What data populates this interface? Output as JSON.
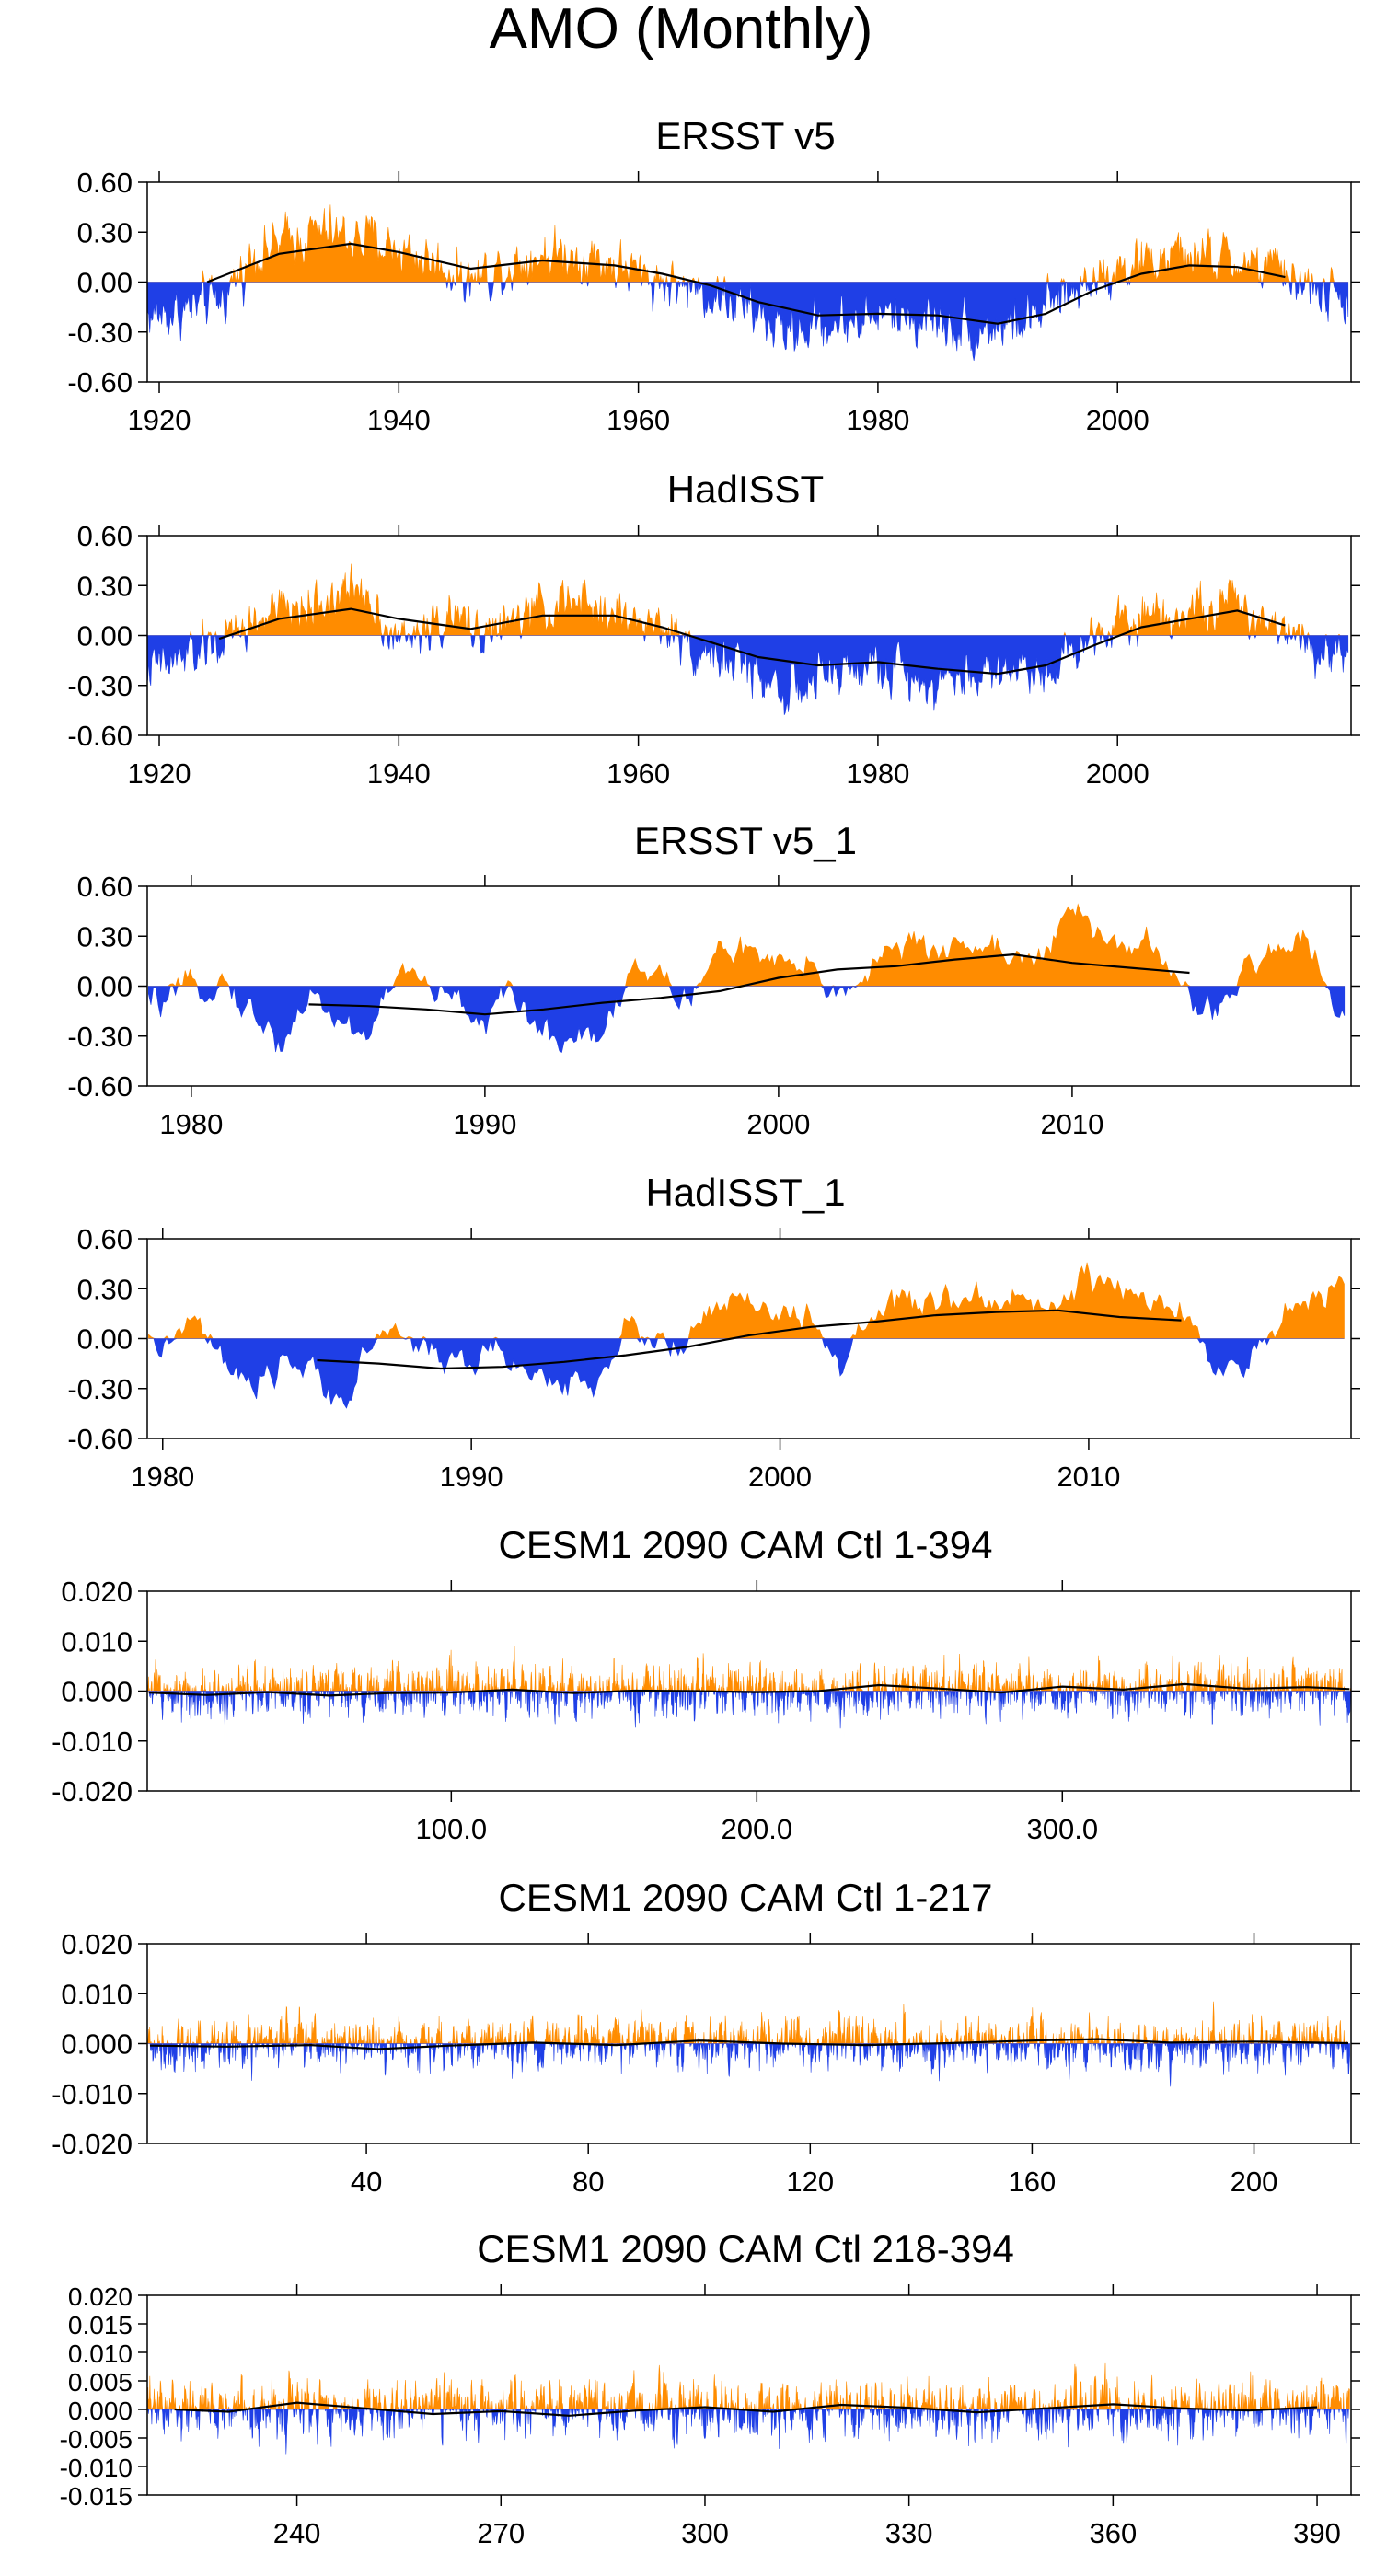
{
  "figure": {
    "title": "AMO (Monthly)"
  },
  "colors": {
    "positive": "#ff8c00",
    "negative": "#1f3fe6",
    "smooth": "#000000"
  },
  "chart_data": [
    {
      "type": "area",
      "title": "ERSST v5",
      "xlim": [
        1919,
        2019.5
      ],
      "ylim": [
        -0.6,
        0.6
      ],
      "yticks": [
        "0.60",
        "0.30",
        "0.00",
        "-0.30",
        "-0.60"
      ],
      "ytick_values": [
        0.6,
        0.3,
        0.0,
        -0.3,
        -0.6
      ],
      "xticks": [
        "1920",
        "1940",
        "1960",
        "1980",
        "2000"
      ],
      "xtick_values": [
        1920,
        1940,
        1960,
        1980,
        2000
      ],
      "anomaly_anchors": [
        [
          1920,
          -0.2
        ],
        [
          1925,
          -0.12
        ],
        [
          1928,
          0.18
        ],
        [
          1933,
          0.3
        ],
        [
          1938,
          0.25
        ],
        [
          1942,
          0.15
        ],
        [
          1946,
          0.02
        ],
        [
          1952,
          0.18
        ],
        [
          1956,
          0.15
        ],
        [
          1960,
          0.05
        ],
        [
          1965,
          -0.05
        ],
        [
          1968,
          -0.12
        ],
        [
          1972,
          -0.3
        ],
        [
          1976,
          -0.25
        ],
        [
          1980,
          -0.2
        ],
        [
          1984,
          -0.22
        ],
        [
          1988,
          -0.28
        ],
        [
          1992,
          -0.25
        ],
        [
          1996,
          -0.08
        ],
        [
          1998,
          0.05
        ],
        [
          2002,
          0.12
        ],
        [
          2006,
          0.15
        ],
        [
          2010,
          0.12
        ],
        [
          2014,
          0.05
        ],
        [
          2018,
          -0.1
        ]
      ],
      "smooth": {
        "x": [
          1924,
          1930,
          1936,
          1940,
          1946,
          1952,
          1958,
          1962,
          1966,
          1970,
          1975,
          1980,
          1985,
          1990,
          1994,
          1998,
          2002,
          2006,
          2010,
          2014
        ],
        "y": [
          0.0,
          0.17,
          0.23,
          0.18,
          0.08,
          0.13,
          0.1,
          0.05,
          -0.02,
          -0.12,
          -0.2,
          -0.19,
          -0.2,
          -0.25,
          -0.19,
          -0.05,
          0.05,
          0.1,
          0.09,
          0.03
        ]
      },
      "noise": 0.13,
      "step": 0.0833
    },
    {
      "type": "area",
      "title": "HadISST",
      "xlim": [
        1919,
        2019.5
      ],
      "ylim": [
        -0.6,
        0.6
      ],
      "yticks": [
        "0.60",
        "0.30",
        "0.00",
        "-0.30",
        "-0.60"
      ],
      "ytick_values": [
        0.6,
        0.3,
        0.0,
        -0.3,
        -0.6
      ],
      "xticks": [
        "1920",
        "1940",
        "1960",
        "1980",
        "2000"
      ],
      "xtick_values": [
        1920,
        1940,
        1960,
        1980,
        2000
      ],
      "anomaly_anchors": [
        [
          1920,
          -0.2
        ],
        [
          1925,
          -0.05
        ],
        [
          1929,
          0.12
        ],
        [
          1934,
          0.2
        ],
        [
          1937,
          0.3
        ],
        [
          1940,
          -0.05
        ],
        [
          1944,
          0.1
        ],
        [
          1948,
          0.02
        ],
        [
          1953,
          0.2
        ],
        [
          1957,
          0.15
        ],
        [
          1962,
          0.05
        ],
        [
          1965,
          -0.08
        ],
        [
          1969,
          -0.2
        ],
        [
          1973,
          -0.35
        ],
        [
          1977,
          -0.2
        ],
        [
          1981,
          -0.2
        ],
        [
          1985,
          -0.28
        ],
        [
          1990,
          -0.2
        ],
        [
          1994,
          -0.2
        ],
        [
          1997,
          -0.05
        ],
        [
          2000,
          0.12
        ],
        [
          2005,
          0.15
        ],
        [
          2010,
          0.18
        ],
        [
          2014,
          0.05
        ],
        [
          2018,
          -0.1
        ]
      ],
      "smooth": {
        "x": [
          1925,
          1930,
          1936,
          1940,
          1946,
          1952,
          1958,
          1962,
          1966,
          1970,
          1975,
          1980,
          1985,
          1990,
          1994,
          1998,
          2002,
          2006,
          2010,
          2014
        ],
        "y": [
          -0.02,
          0.1,
          0.16,
          0.1,
          0.04,
          0.12,
          0.12,
          0.05,
          -0.04,
          -0.13,
          -0.18,
          -0.16,
          -0.2,
          -0.23,
          -0.18,
          -0.06,
          0.05,
          0.1,
          0.15,
          0.06
        ]
      },
      "noise": 0.12,
      "step": 0.0833
    },
    {
      "type": "area",
      "title": "ERSST v5_1",
      "xlim": [
        1978.5,
        2019.5
      ],
      "ylim": [
        -0.6,
        0.6
      ],
      "yticks": [
        "0.60",
        "0.30",
        "0.00",
        "-0.30",
        "-0.60"
      ],
      "ytick_values": [
        0.6,
        0.3,
        0.0,
        -0.3,
        -0.6
      ],
      "xticks": [
        "1980",
        "1990",
        "2000",
        "2010"
      ],
      "xtick_values": [
        1980,
        1990,
        2000,
        2010
      ],
      "anomaly_anchors": [
        [
          1979,
          -0.1
        ],
        [
          1981,
          0.05
        ],
        [
          1982,
          -0.15
        ],
        [
          1983,
          -0.35
        ],
        [
          1984,
          -0.05
        ],
        [
          1985,
          -0.2
        ],
        [
          1986,
          -0.3
        ],
        [
          1987,
          0.1
        ],
        [
          1988,
          0.0
        ],
        [
          1989,
          -0.1
        ],
        [
          1990,
          -0.2
        ],
        [
          1991,
          -0.05
        ],
        [
          1992,
          -0.3
        ],
        [
          1993,
          -0.3
        ],
        [
          1994,
          -0.25
        ],
        [
          1995,
          0.1
        ],
        [
          1996,
          0.05
        ],
        [
          1997,
          -0.1
        ],
        [
          1998,
          0.25
        ],
        [
          1999,
          0.2
        ],
        [
          2000,
          0.1
        ],
        [
          2001,
          0.1
        ],
        [
          2002,
          -0.05
        ],
        [
          2003,
          0.1
        ],
        [
          2004,
          0.25
        ],
        [
          2005,
          0.2
        ],
        [
          2006,
          0.25
        ],
        [
          2007,
          0.25
        ],
        [
          2008,
          0.2
        ],
        [
          2009,
          0.15
        ],
        [
          2010,
          0.45
        ],
        [
          2011,
          0.3
        ],
        [
          2012,
          0.25
        ],
        [
          2013,
          0.2
        ],
        [
          2014,
          -0.1
        ],
        [
          2015,
          -0.15
        ],
        [
          2016,
          0.1
        ],
        [
          2017,
          0.2
        ],
        [
          2018,
          0.35
        ],
        [
          2019,
          -0.15
        ]
      ],
      "smooth": {
        "x": [
          1984,
          1986,
          1988,
          1990,
          1992,
          1994,
          1996,
          1998,
          2000,
          2002,
          2004,
          2006,
          2008,
          2010,
          2012,
          2014
        ],
        "y": [
          -0.11,
          -0.12,
          -0.14,
          -0.17,
          -0.14,
          -0.1,
          -0.07,
          -0.03,
          0.05,
          0.1,
          0.12,
          0.16,
          0.19,
          0.14,
          0.11,
          0.08
        ]
      },
      "noise": 0.08,
      "step": 0.0833
    },
    {
      "type": "area",
      "title": "HadISST_1",
      "xlim": [
        1979.5,
        2018.5
      ],
      "ylim": [
        -0.6,
        0.6
      ],
      "yticks": [
        "0.60",
        "0.30",
        "0.00",
        "-0.30",
        "-0.60"
      ],
      "ytick_values": [
        0.6,
        0.3,
        0.0,
        -0.3,
        -0.6
      ],
      "xticks": [
        "1980",
        "1990",
        "2000",
        "2010"
      ],
      "xtick_values": [
        1980,
        1990,
        2000,
        2010
      ],
      "anomaly_anchors": [
        [
          1980,
          -0.05
        ],
        [
          1981,
          0.1
        ],
        [
          1982,
          -0.15
        ],
        [
          1983,
          -0.35
        ],
        [
          1984,
          -0.1
        ],
        [
          1985,
          -0.25
        ],
        [
          1986,
          -0.35
        ],
        [
          1987,
          0.05
        ],
        [
          1988,
          0.0
        ],
        [
          1989,
          -0.1
        ],
        [
          1990,
          -0.15
        ],
        [
          1991,
          -0.05
        ],
        [
          1992,
          -0.25
        ],
        [
          1993,
          -0.25
        ],
        [
          1994,
          -0.25
        ],
        [
          1995,
          0.05
        ],
        [
          1996,
          0.0
        ],
        [
          1997,
          -0.05
        ],
        [
          1998,
          0.2
        ],
        [
          1999,
          0.2
        ],
        [
          2000,
          0.15
        ],
        [
          2001,
          0.1
        ],
        [
          2002,
          -0.15
        ],
        [
          2003,
          0.1
        ],
        [
          2004,
          0.25
        ],
        [
          2005,
          0.15
        ],
        [
          2006,
          0.25
        ],
        [
          2007,
          0.2
        ],
        [
          2008,
          0.3
        ],
        [
          2009,
          0.15
        ],
        [
          2010,
          0.4
        ],
        [
          2011,
          0.25
        ],
        [
          2012,
          0.2
        ],
        [
          2013,
          0.15
        ],
        [
          2014,
          -0.1
        ],
        [
          2015,
          -0.15
        ],
        [
          2016,
          0.05
        ],
        [
          2017,
          0.2
        ],
        [
          2018,
          0.35
        ]
      ],
      "smooth": {
        "x": [
          1985,
          1987,
          1989,
          1991,
          1993,
          1995,
          1997,
          1999,
          2001,
          2003,
          2005,
          2007,
          2009,
          2011,
          2013
        ],
        "y": [
          -0.13,
          -0.15,
          -0.18,
          -0.17,
          -0.14,
          -0.1,
          -0.05,
          0.02,
          0.07,
          0.1,
          0.14,
          0.16,
          0.17,
          0.13,
          0.11
        ]
      },
      "noise": 0.08,
      "step": 0.0833
    },
    {
      "type": "area",
      "title": "CESM1 2090 CAM Ctl 1-394",
      "xlim": [
        0.5,
        394.5
      ],
      "ylim": [
        -0.02,
        0.02
      ],
      "yticks": [
        "0.020",
        "0.010",
        "0.000",
        "-0.010",
        "-0.020"
      ],
      "ytick_values": [
        0.02,
        0.01,
        0.0,
        -0.01,
        -0.02
      ],
      "xticks": [
        "100.0",
        "200.0",
        "300.0"
      ],
      "xtick_values": [
        100,
        200,
        300
      ],
      "anomaly_anchors": [
        [
          1,
          0.0
        ],
        [
          394,
          0.0
        ]
      ],
      "smooth": {
        "x": [
          1,
          20,
          40,
          60,
          80,
          100,
          120,
          140,
          160,
          180,
          200,
          220,
          240,
          260,
          280,
          300,
          320,
          340,
          360,
          380,
          394
        ],
        "y": [
          -0.0003,
          -0.0008,
          -0.0002,
          -0.0009,
          -0.0004,
          -0.0003,
          0.0003,
          -0.0004,
          0.0001,
          0.0,
          -0.0002,
          0.0,
          0.0012,
          0.0005,
          -0.0003,
          0.0009,
          0.0003,
          0.0014,
          0.0005,
          0.0008,
          0.0004
        ]
      },
      "noise": 0.0042,
      "step": 0.12
    },
    {
      "type": "area",
      "title": "CESM1 2090 CAM Ctl 1-217",
      "xlim": [
        0.5,
        217.5
      ],
      "ylim": [
        -0.02,
        0.02
      ],
      "yticks": [
        "0.020",
        "0.010",
        "0.000",
        "-0.010",
        "-0.020"
      ],
      "ytick_values": [
        0.02,
        0.01,
        0.0,
        -0.01,
        -0.02
      ],
      "xticks": [
        "40",
        "80",
        "120",
        "160",
        "200"
      ],
      "xtick_values": [
        40,
        80,
        120,
        160,
        200
      ],
      "anomaly_anchors": [
        [
          1,
          0.0
        ],
        [
          217,
          0.0
        ]
      ],
      "smooth": {
        "x": [
          1,
          15,
          30,
          42,
          55,
          70,
          85,
          100,
          115,
          130,
          145,
          160,
          172,
          185,
          200,
          217
        ],
        "y": [
          -0.0004,
          -0.0006,
          -0.0003,
          -0.0011,
          -0.0004,
          0.0002,
          -0.0003,
          0.0006,
          0.0,
          -0.0003,
          0.0001,
          0.0006,
          0.0009,
          0.0002,
          0.0004,
          0.0001
        ]
      },
      "noise": 0.0042,
      "step": 0.08
    },
    {
      "type": "area",
      "title": "CESM1 2090 CAM Ctl 218-394",
      "xlim": [
        218,
        395
      ],
      "ylim": [
        -0.015,
        0.02
      ],
      "yticks": [
        "0.020",
        "0.015",
        "0.010",
        "0.005",
        "0.000",
        "-0.005",
        "-0.010",
        "-0.015"
      ],
      "ytick_values": [
        0.02,
        0.015,
        0.01,
        0.005,
        0.0,
        -0.005,
        -0.01,
        -0.015
      ],
      "xticks": [
        "240",
        "270",
        "300",
        "330",
        "360",
        "390"
      ],
      "xtick_values": [
        240,
        270,
        300,
        330,
        360,
        390
      ],
      "anomaly_anchors": [
        [
          218,
          0.0
        ],
        [
          394,
          0.0
        ]
      ],
      "smooth": {
        "x": [
          222,
          230,
          240,
          250,
          260,
          270,
          280,
          290,
          300,
          310,
          320,
          330,
          340,
          350,
          360,
          370,
          380,
          390
        ],
        "y": [
          0.0,
          -0.0004,
          0.0012,
          0.0002,
          -0.0008,
          -0.0003,
          -0.0011,
          -0.0002,
          0.0004,
          -0.0004,
          0.0008,
          0.0003,
          -0.0005,
          0.0002,
          0.0009,
          0.0002,
          -0.0002,
          0.0004
        ]
      },
      "noise": 0.0042,
      "step": 0.07
    }
  ]
}
